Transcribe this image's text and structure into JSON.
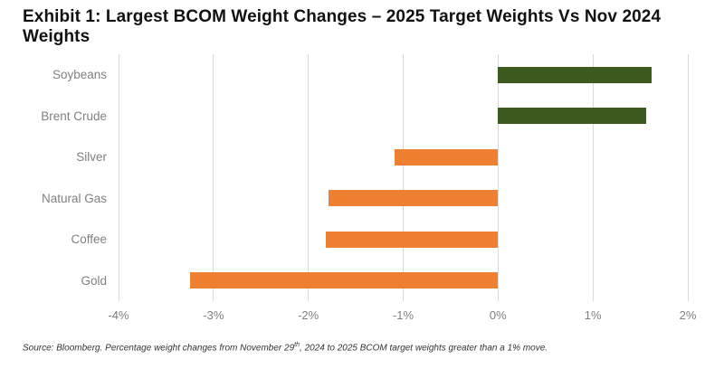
{
  "title": "Exhibit 1: Largest BCOM Weight Changes – 2025 Target Weights Vs Nov 2024 Weights",
  "source": {
    "prefix": "Source: Bloomberg. Percentage weight changes from November 29",
    "superscript": "th",
    "suffix": ", 2024 to 2025 BCOM target weights greater than a 1% move."
  },
  "colors": {
    "positive_bar": "#3e5a1e",
    "negative_bar": "#ee8032",
    "gridline": "#d9d9d9",
    "axis_text": "#7f7f7f",
    "category_text": "#808080"
  },
  "chart_data": {
    "type": "bar",
    "orientation": "horizontal",
    "title": "Exhibit 1: Largest BCOM Weight Changes – 2025 Target Weights Vs Nov 2024 Weights",
    "categories": [
      "Soybeans",
      "Brent Crude",
      "Silver",
      "Natural Gas",
      "Coffee",
      "Gold"
    ],
    "values": [
      1.62,
      1.56,
      -1.09,
      -1.79,
      -1.82,
      -3.25
    ],
    "unit": "%",
    "xlabel": "",
    "ylabel": "",
    "xlim": [
      -4,
      2
    ],
    "x_ticks": [
      "-4%",
      "-3%",
      "-2%",
      "-1%",
      "0%",
      "1%",
      "2%"
    ],
    "x_tick_values": [
      -4,
      -3,
      -2,
      -1,
      0,
      1,
      2
    ],
    "grid": true,
    "legend": "none"
  }
}
